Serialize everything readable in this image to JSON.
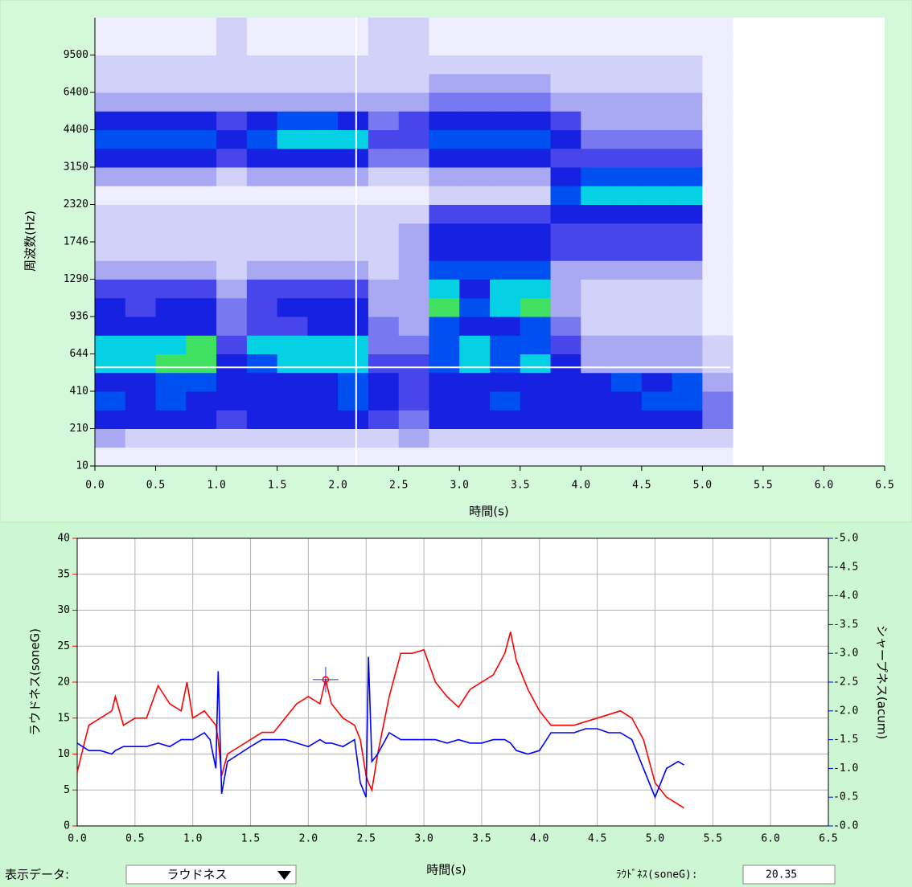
{
  "chart_data": [
    {
      "type": "heatmap",
      "xlabel": "時間(s)",
      "ylabel": "周波数(Hz)",
      "xlim": [
        0,
        6.5
      ],
      "xticks": [
        {
          "value": 0,
          "label": "0.0"
        },
        0.5,
        {
          "value": 1,
          "label": "1.0"
        },
        1.5,
        {
          "value": 2,
          "label": "2.0"
        },
        2.5,
        {
          "value": 3,
          "label": "3.0"
        },
        3.5,
        {
          "value": 4,
          "label": "4.0"
        },
        4.5,
        {
          "value": 5,
          "label": "5.0"
        },
        5.5,
        {
          "value": 6,
          "label": "6.0"
        },
        6.5
      ],
      "yticks": [
        10,
        210,
        410,
        644,
        936,
        1290,
        1746,
        2320,
        3150,
        4400,
        6400,
        9500
      ],
      "x_bins": [
        0,
        0.25,
        0.5,
        0.75,
        1,
        1.25,
        1.5,
        1.75,
        2,
        2.25,
        2.5,
        2.75,
        3,
        3.25,
        3.5,
        3.75,
        4,
        4.25,
        4.5,
        4.75,
        5,
        5.25
      ],
      "z": [
        [
          1,
          1,
          1,
          1,
          1,
          1,
          1,
          1,
          1,
          1,
          1,
          1,
          1,
          1,
          1,
          1,
          1,
          1,
          1,
          1,
          1
        ],
        [
          3,
          2,
          2,
          2,
          2,
          2,
          2,
          2,
          2,
          2,
          3,
          2,
          2,
          2,
          2,
          2,
          2,
          2,
          2,
          2,
          2
        ],
        [
          6,
          6,
          6,
          6,
          5,
          6,
          6,
          6,
          6,
          5,
          4,
          6,
          6,
          6,
          6,
          6,
          6,
          6,
          6,
          6,
          4
        ],
        [
          7,
          6,
          7,
          6,
          6,
          6,
          6,
          6,
          7,
          6,
          5,
          6,
          6,
          7,
          6,
          6,
          6,
          6,
          7,
          7,
          4
        ],
        [
          6,
          6,
          7,
          7,
          6,
          6,
          6,
          6,
          7,
          6,
          5,
          6,
          6,
          6,
          6,
          6,
          6,
          7,
          6,
          7,
          3
        ],
        [
          8,
          8,
          9,
          9,
          6,
          7,
          8,
          8,
          8,
          5,
          5,
          7,
          8,
          7,
          8,
          6,
          3,
          3,
          3,
          3,
          2
        ],
        [
          8,
          8,
          8,
          9,
          5,
          8,
          8,
          8,
          8,
          4,
          4,
          7,
          8,
          7,
          7,
          5,
          3,
          3,
          3,
          3,
          2
        ],
        [
          6,
          6,
          6,
          6,
          4,
          5,
          5,
          6,
          6,
          4,
          3,
          7,
          6,
          6,
          7,
          4,
          2,
          2,
          2,
          2,
          1
        ],
        [
          6,
          5,
          6,
          6,
          4,
          5,
          6,
          6,
          6,
          3,
          3,
          9,
          7,
          8,
          9,
          3,
          2,
          2,
          2,
          2,
          1
        ],
        [
          5,
          5,
          5,
          5,
          3,
          5,
          5,
          5,
          5,
          3,
          3,
          8,
          6,
          8,
          8,
          3,
          2,
          2,
          2,
          2,
          1
        ],
        [
          3,
          3,
          3,
          3,
          2,
          3,
          3,
          3,
          3,
          2,
          3,
          7,
          7,
          7,
          7,
          3,
          3,
          3,
          3,
          3,
          1
        ],
        [
          2,
          2,
          2,
          2,
          2,
          2,
          2,
          2,
          2,
          2,
          3,
          6,
          6,
          6,
          6,
          5,
          5,
          5,
          5,
          5,
          1
        ],
        [
          2,
          2,
          2,
          2,
          2,
          2,
          2,
          2,
          2,
          2,
          3,
          6,
          6,
          6,
          6,
          5,
          5,
          5,
          5,
          5,
          1
        ],
        [
          2,
          2,
          2,
          2,
          2,
          2,
          2,
          2,
          2,
          2,
          2,
          5,
          5,
          5,
          5,
          6,
          6,
          6,
          6,
          6,
          1
        ],
        [
          1,
          1,
          1,
          1,
          1,
          1,
          1,
          1,
          1,
          1,
          1,
          2,
          2,
          2,
          2,
          7,
          8,
          8,
          8,
          8,
          1
        ],
        [
          3,
          3,
          3,
          3,
          2,
          3,
          3,
          3,
          3,
          2,
          2,
          3,
          3,
          3,
          3,
          6,
          7,
          7,
          7,
          7,
          1
        ],
        [
          6,
          6,
          6,
          6,
          5,
          6,
          6,
          6,
          6,
          4,
          4,
          6,
          6,
          6,
          6,
          5,
          5,
          5,
          5,
          5,
          1
        ],
        [
          7,
          7,
          7,
          7,
          6,
          7,
          8,
          8,
          8,
          5,
          5,
          7,
          7,
          7,
          7,
          6,
          4,
          4,
          4,
          4,
          1
        ],
        [
          6,
          6,
          6,
          6,
          5,
          6,
          7,
          7,
          6,
          4,
          5,
          6,
          6,
          6,
          6,
          5,
          3,
          3,
          3,
          3,
          1
        ],
        [
          3,
          3,
          3,
          3,
          3,
          3,
          3,
          3,
          3,
          3,
          3,
          4,
          4,
          4,
          4,
          3,
          3,
          3,
          3,
          3,
          1
        ],
        [
          2,
          2,
          2,
          2,
          2,
          2,
          2,
          2,
          2,
          2,
          2,
          3,
          3,
          3,
          3,
          2,
          2,
          2,
          2,
          2,
          1
        ],
        [
          2,
          2,
          2,
          2,
          2,
          2,
          2,
          2,
          2,
          2,
          2,
          2,
          2,
          2,
          2,
          2,
          2,
          2,
          2,
          2,
          1
        ],
        [
          1,
          1,
          1,
          1,
          2,
          1,
          1,
          1,
          1,
          2,
          2,
          1,
          1,
          1,
          1,
          1,
          1,
          1,
          1,
          1,
          1
        ],
        [
          1,
          1,
          1,
          1,
          2,
          1,
          1,
          1,
          1,
          2,
          2,
          1,
          1,
          1,
          1,
          1,
          1,
          1,
          1,
          1,
          1
        ]
      ],
      "cursor": {
        "x": 2.15,
        "y": 560
      }
    },
    {
      "type": "line",
      "xlabel": "時間(s)",
      "ylabel": "ラウドネス(soneG)",
      "y2label": "シャープネス(acum)",
      "xlim": [
        0,
        6.5
      ],
      "xticks": [
        {
          "value": 0,
          "label": "0.0"
        },
        0.5,
        {
          "value": 1,
          "label": "1.0"
        },
        1.5,
        {
          "value": 2,
          "label": "2.0"
        },
        2.5,
        {
          "value": 3,
          "label": "3.0"
        },
        3.5,
        {
          "value": 4,
          "label": "4.0"
        },
        4.5,
        {
          "value": 5,
          "label": "5.0"
        },
        5.5,
        {
          "value": 6,
          "label": "6.0"
        },
        6.5
      ],
      "ylim": [
        0,
        40
      ],
      "yticks": [
        0,
        5,
        10,
        15,
        20,
        25,
        30,
        35,
        40
      ],
      "y2lim": [
        0,
        -5
      ],
      "y2ticks": [
        {
          "value": -5,
          "label": "-5.0"
        },
        -4.5,
        {
          "value": -4,
          "label": "-4.0"
        },
        -3.5,
        {
          "value": -3,
          "label": "-3.0"
        },
        -2.5,
        {
          "value": -2,
          "label": "-2.0"
        },
        -1.5,
        {
          "value": -1,
          "label": "-1.0"
        },
        -0.5,
        {
          "value": 0,
          "label": "-0.0"
        }
      ],
      "grid": true,
      "x": [
        0,
        0.1,
        0.2,
        0.3,
        0.33,
        0.4,
        0.5,
        0.6,
        0.7,
        0.8,
        0.9,
        0.95,
        1.0,
        1.1,
        1.15,
        1.2,
        1.22,
        1.25,
        1.3,
        1.4,
        1.5,
        1.6,
        1.7,
        1.8,
        1.9,
        2.0,
        2.1,
        2.15,
        2.2,
        2.3,
        2.4,
        2.45,
        2.5,
        2.52,
        2.55,
        2.6,
        2.7,
        2.8,
        2.9,
        3.0,
        3.1,
        3.2,
        3.3,
        3.4,
        3.5,
        3.6,
        3.7,
        3.75,
        3.8,
        3.9,
        4.0,
        4.1,
        4.2,
        4.3,
        4.4,
        4.5,
        4.6,
        4.7,
        4.8,
        4.9,
        5.0,
        5.1,
        5.2,
        5.25
      ],
      "series": [
        {
          "color": "#ff0000",
          "values": [
            7.5,
            14,
            15,
            16,
            18,
            14,
            15,
            15,
            19.5,
            17,
            16,
            20,
            15,
            16,
            15,
            14,
            12,
            7,
            10,
            11,
            12,
            13,
            13,
            15,
            17,
            18,
            17,
            20.35,
            17,
            15,
            14,
            12,
            7,
            6,
            5,
            10,
            18,
            24,
            24,
            24.5,
            20,
            18,
            16.5,
            19,
            20,
            21,
            24,
            27,
            23,
            19,
            16,
            14,
            14,
            14,
            14.5,
            15,
            15.5,
            16,
            15,
            12,
            6,
            4,
            3,
            2.5
          ]
        },
        {
          "color": "#0000ff",
          "axis": "y2",
          "values": [
            -1.44,
            -1.31,
            -1.31,
            -1.25,
            -1.31,
            -1.38,
            -1.38,
            -1.38,
            -1.44,
            -1.38,
            -1.5,
            -1.5,
            -1.5,
            -1.62,
            -1.5,
            -1.0,
            -2.69,
            -0.56,
            -1.12,
            -1.25,
            -1.38,
            -1.5,
            -1.5,
            -1.5,
            -1.44,
            -1.38,
            -1.5,
            -1.44,
            -1.44,
            -1.38,
            -1.5,
            -0.75,
            -0.5,
            -2.94,
            -1.12,
            -1.25,
            -1.62,
            -1.5,
            -1.5,
            -1.5,
            -1.5,
            -1.44,
            -1.5,
            -1.44,
            -1.44,
            -1.5,
            -1.5,
            -1.44,
            -1.31,
            -1.25,
            -1.31,
            -1.62,
            -1.62,
            -1.62,
            -1.69,
            -1.69,
            -1.62,
            -1.62,
            -1.5,
            -1.0,
            -0.5,
            -1.0,
            -1.12,
            -1.06
          ]
        }
      ],
      "cursor": {
        "x": 2.15,
        "y": 20.35
      }
    }
  ],
  "controls": {
    "display_label": "表示データ:",
    "display_value": "ラウドネス",
    "readout_label": "ﾗｳﾄﾞﾈｽ(soneG):"
  }
}
